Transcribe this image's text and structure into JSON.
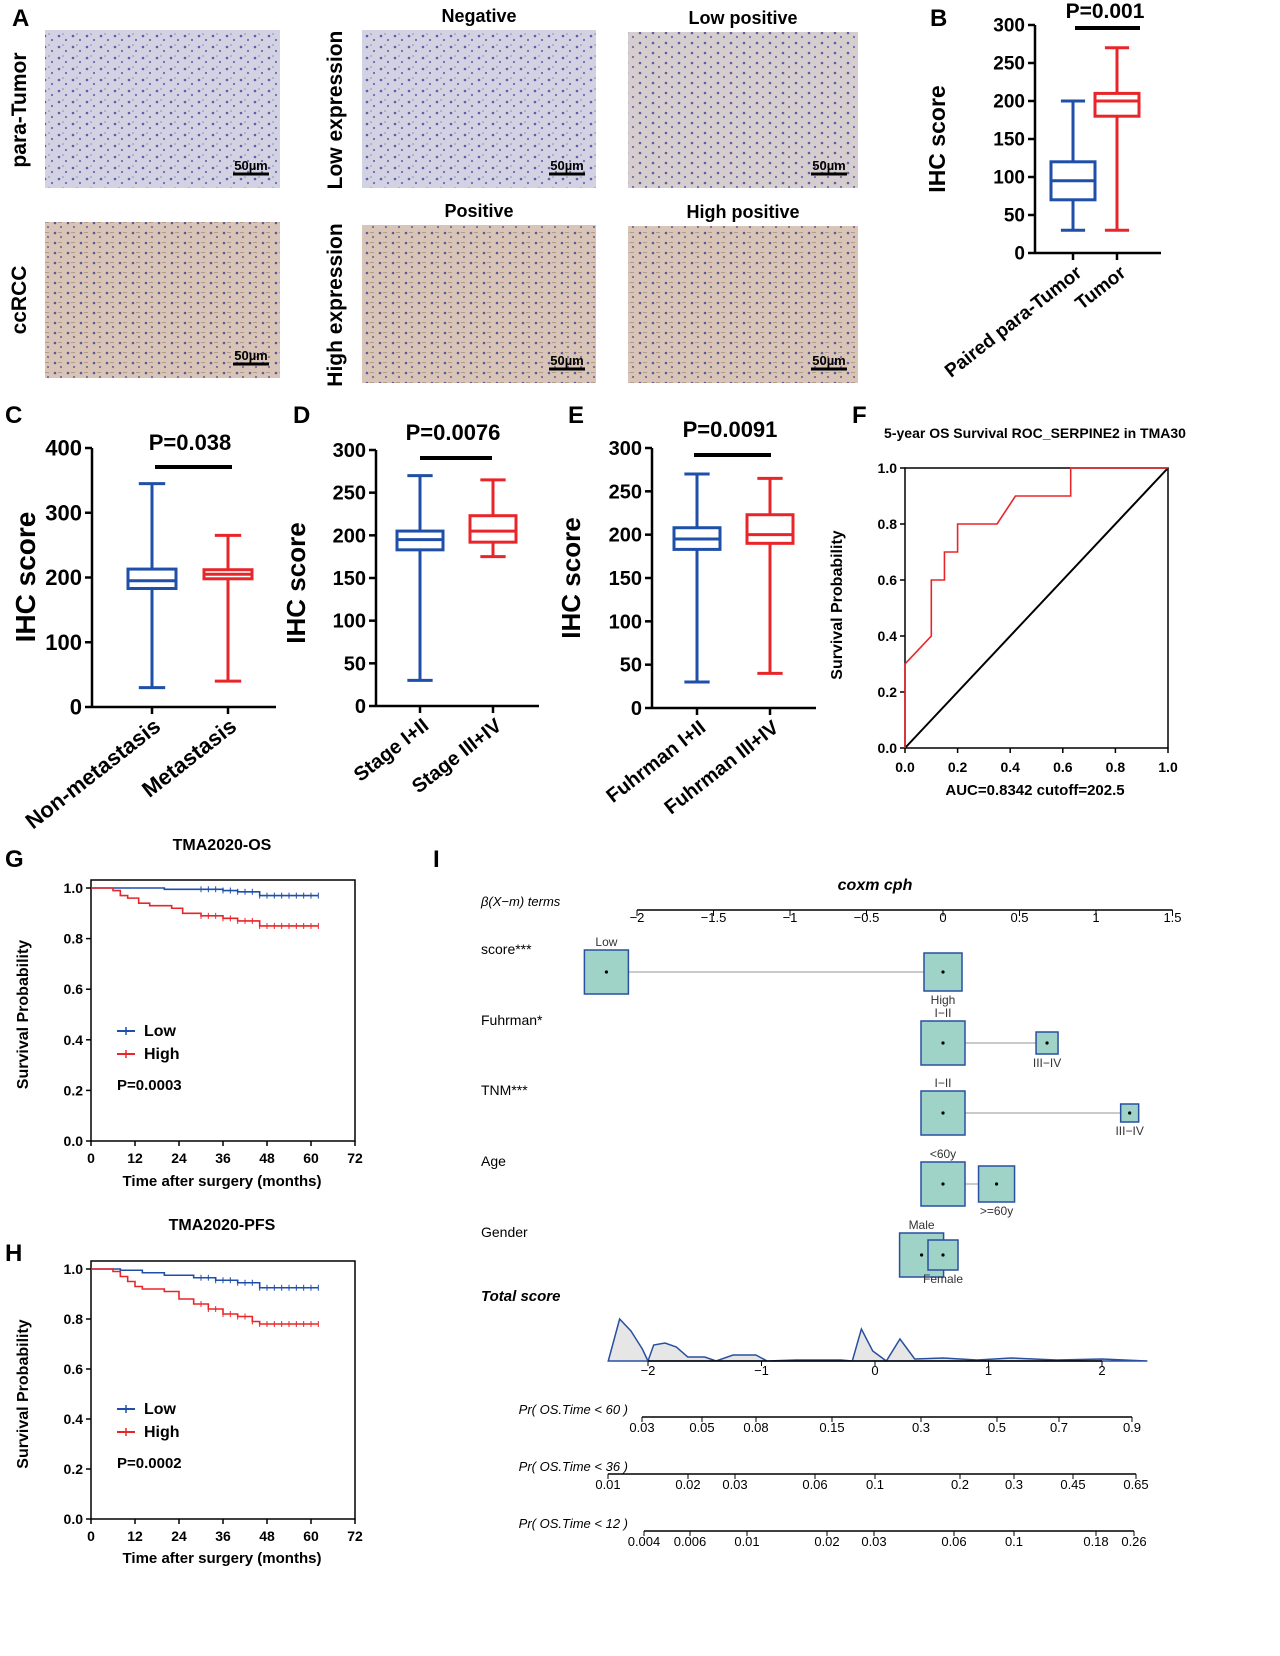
{
  "figure": {
    "panel_labels": [
      "A",
      "B",
      "C",
      "D",
      "E",
      "F",
      "G",
      "H",
      "I"
    ]
  },
  "panel_A": {
    "row_labels": [
      "para-Tumor",
      "ccRCC"
    ],
    "group_labels": [
      "Low expression",
      "High expression"
    ],
    "image_titles": [
      "Negative",
      "Low positive",
      "Positive",
      "High positive"
    ],
    "scale_bar": "50µm"
  },
  "colors": {
    "blue": "#1f4fa8",
    "red": "#e8262a",
    "nomogram_box": "#9fd3c7",
    "nomogram_border": "#2a4fa0"
  },
  "chart_data": [
    {
      "type": "box",
      "panel": "B",
      "ylabel": "IHC score",
      "ylim": [
        0,
        300
      ],
      "yticks": [
        "0",
        "50",
        "100",
        "150",
        "200",
        "250",
        "300"
      ],
      "categories": [
        "Paired para-Tumor",
        "Tumor"
      ],
      "boxes": [
        {
          "min": 30,
          "q1": 70,
          "median": 95,
          "q3": 120,
          "max": 200
        },
        {
          "min": 30,
          "q1": 180,
          "median": 200,
          "q3": 210,
          "max": 270
        }
      ],
      "annotation": "P=0.001"
    },
    {
      "type": "box",
      "panel": "C",
      "ylabel": "IHC score",
      "ylim": [
        0,
        400
      ],
      "yticks": [
        "0",
        "100",
        "200",
        "300",
        "400"
      ],
      "categories": [
        "Non-metastasis",
        "Metastasis"
      ],
      "boxes": [
        {
          "min": 30,
          "q1": 183,
          "median": 195,
          "q3": 213,
          "max": 345
        },
        {
          "min": 40,
          "q1": 198,
          "median": 205,
          "q3": 212,
          "max": 265
        }
      ],
      "annotation": "P=0.038"
    },
    {
      "type": "box",
      "panel": "D",
      "ylabel": "IHC score",
      "ylim": [
        0,
        300
      ],
      "yticks": [
        "0",
        "50",
        "100",
        "150",
        "200",
        "250",
        "300"
      ],
      "categories": [
        "Stage I+II",
        "Stage III+IV"
      ],
      "boxes": [
        {
          "min": 30,
          "q1": 183,
          "median": 195,
          "q3": 205,
          "max": 270
        },
        {
          "min": 175,
          "q1": 192,
          "median": 205,
          "q3": 223,
          "max": 265
        }
      ],
      "annotation": "P=0.0076"
    },
    {
      "type": "box",
      "panel": "E",
      "ylabel": "IHC score",
      "ylim": [
        0,
        300
      ],
      "yticks": [
        "0",
        "50",
        "100",
        "150",
        "200",
        "250",
        "300"
      ],
      "categories": [
        "Fuhrman I+II",
        "Fuhrman III+IV"
      ],
      "boxes": [
        {
          "min": 30,
          "q1": 183,
          "median": 195,
          "q3": 208,
          "max": 270
        },
        {
          "min": 40,
          "q1": 190,
          "median": 200,
          "q3": 223,
          "max": 265
        }
      ],
      "annotation": "P=0.0091"
    },
    {
      "type": "line",
      "panel": "F",
      "title": "5-year OS Survival ROC_SERPINE2 in TMA30",
      "ylabel": "Survival Probability",
      "xlim": [
        0,
        1
      ],
      "ylim": [
        0,
        1
      ],
      "xticks": [
        "0.0",
        "0.2",
        "0.4",
        "0.6",
        "0.8",
        "1.0"
      ],
      "yticks": [
        "0.0",
        "0.2",
        "0.4",
        "0.6",
        "0.8",
        "1.0"
      ],
      "x": [
        0,
        0,
        0.1,
        0.1,
        0.15,
        0.15,
        0.2,
        0.2,
        0.35,
        0.42,
        0.63,
        0.63,
        1.0
      ],
      "y": [
        0,
        0.3,
        0.4,
        0.6,
        0.6,
        0.7,
        0.7,
        0.8,
        0.8,
        0.9,
        0.9,
        1.0,
        1.0
      ],
      "reference_diagonal": true,
      "footer": "AUC=0.8342 cutoff=202.5"
    },
    {
      "type": "line",
      "panel": "G",
      "title": "TMA2020-OS",
      "ylabel": "Survival Probability",
      "xlabel": "Time after surgery (months)",
      "xlim": [
        0,
        72
      ],
      "ylim": [
        0,
        1
      ],
      "xticks": [
        "0",
        "12",
        "24",
        "36",
        "48",
        "60",
        "72"
      ],
      "yticks": [
        "0.0",
        "0.2",
        "0.4",
        "0.6",
        "0.8",
        "1.0"
      ],
      "series": [
        {
          "name": "Low",
          "t": [
            0,
            20,
            36,
            40,
            46,
            62
          ],
          "s": [
            1,
            0.995,
            0.99,
            0.985,
            0.97,
            0.97
          ]
        },
        {
          "name": "High",
          "t": [
            0,
            6,
            8,
            10,
            13,
            16,
            22,
            25,
            30,
            36,
            40,
            46,
            62
          ],
          "s": [
            1,
            0.99,
            0.97,
            0.96,
            0.94,
            0.93,
            0.92,
            0.9,
            0.89,
            0.88,
            0.87,
            0.85,
            0.85
          ]
        }
      ],
      "annotation": "P=0.0003",
      "legend": "center-left"
    },
    {
      "type": "line",
      "panel": "H",
      "title": "TMA2020-PFS",
      "ylabel": "Survival Probability",
      "xlabel": "Time after surgery (months)",
      "xlim": [
        0,
        72
      ],
      "ylim": [
        0,
        1
      ],
      "xticks": [
        "0",
        "12",
        "24",
        "36",
        "48",
        "60",
        "72"
      ],
      "yticks": [
        "0.0",
        "0.2",
        "0.4",
        "0.6",
        "0.8",
        "1.0"
      ],
      "series": [
        {
          "name": "Low",
          "t": [
            0,
            8,
            14,
            20,
            28,
            34,
            40,
            46,
            62
          ],
          "s": [
            1,
            0.995,
            0.985,
            0.975,
            0.965,
            0.955,
            0.945,
            0.925,
            0.925
          ]
        },
        {
          "name": "High",
          "t": [
            0,
            6,
            8,
            10,
            12,
            14,
            20,
            24,
            28,
            32,
            36,
            40,
            44,
            46,
            62
          ],
          "s": [
            1,
            0.99,
            0.97,
            0.95,
            0.93,
            0.92,
            0.91,
            0.88,
            0.86,
            0.84,
            0.82,
            0.81,
            0.79,
            0.78,
            0.78
          ]
        }
      ],
      "annotation": "P=0.0002",
      "legend": "center-left"
    },
    {
      "type": "nomogram",
      "panel": "I",
      "title": "coxm cph",
      "axis_label": "β(X−m) terms",
      "axis_ticks": [
        "−2",
        "−1.5",
        "−1",
        "−0.5",
        "0",
        "0.5",
        "1",
        "1.5"
      ],
      "rows": [
        {
          "label": "score***",
          "levels": [
            {
              "name": "Low",
              "beta": -2.2
            },
            {
              "name": "High",
              "beta": 0
            }
          ]
        },
        {
          "label": "Fuhrman*",
          "levels": [
            {
              "name": "I−II",
              "beta": 0
            },
            {
              "name": "III−IV",
              "beta": 0.68
            }
          ]
        },
        {
          "label": "TNM***",
          "levels": [
            {
              "name": "I−II",
              "beta": 0
            },
            {
              "name": "III−IV",
              "beta": 1.22
            }
          ]
        },
        {
          "label": "Age",
          "levels": [
            {
              "name": "<60y",
              "beta": 0
            },
            {
              "name": ">=60y",
              "beta": 0.35
            }
          ]
        },
        {
          "label": "Gender",
          "levels": [
            {
              "name": "Male",
              "beta": -0.14
            },
            {
              "name": "Female",
              "beta": 0
            }
          ]
        }
      ],
      "total_score_label": "Total score",
      "total_ticks": [
        "−2",
        "−1",
        "0",
        "1",
        "2"
      ],
      "prob_axes": [
        {
          "label": "Pr( OS.Time < 60 )",
          "ticks": [
            "0.03",
            "0.05",
            "0.08",
            "0.15",
            "0.3",
            "0.5",
            "0.7",
            "0.9"
          ]
        },
        {
          "label": "Pr( OS.Time < 36 )",
          "ticks": [
            "0.01",
            "0.02",
            "0.03",
            "0.06",
            "0.1",
            "0.2",
            "0.3",
            "0.45",
            "0.65"
          ]
        },
        {
          "label": "Pr( OS.Time < 12 )",
          "ticks": [
            "0.004",
            "0.006",
            "0.01",
            "0.02",
            "0.03",
            "0.06",
            "0.1",
            "0.18",
            "0.26"
          ]
        }
      ]
    }
  ]
}
